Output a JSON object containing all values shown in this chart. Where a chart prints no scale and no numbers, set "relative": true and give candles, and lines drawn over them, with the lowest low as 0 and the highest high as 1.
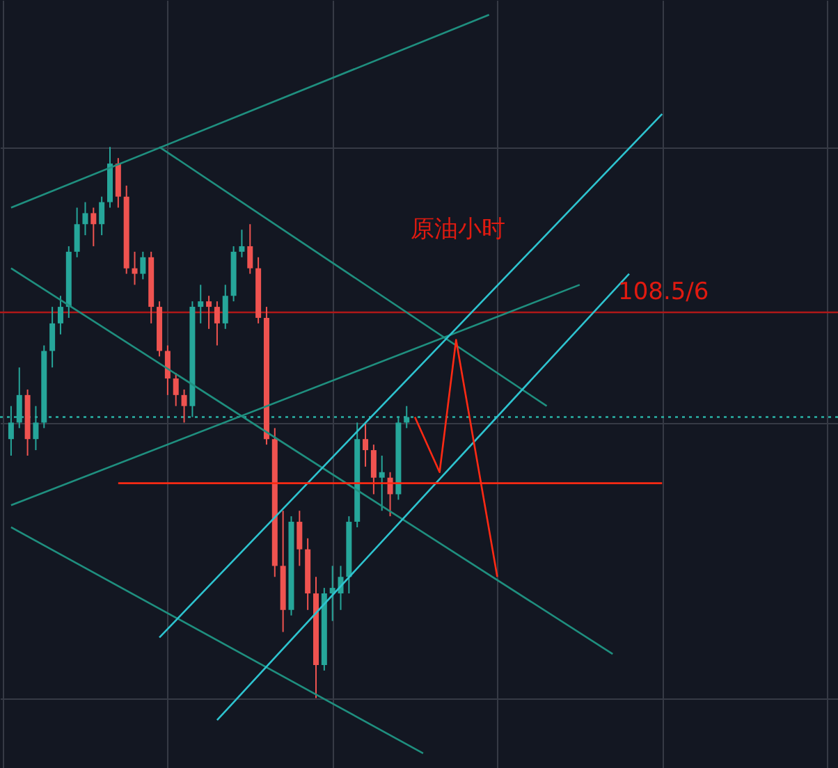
{
  "chart_data": {
    "type": "candlestick",
    "relative": true,
    "grid": true,
    "tick_labels": false,
    "annotations": [
      "原油小时",
      "108.5/6"
    ],
    "categories": [
      null,
      null,
      null,
      null,
      null,
      null,
      null,
      null,
      null,
      null,
      null,
      null,
      null,
      null,
      null,
      null,
      null,
      null,
      null,
      null,
      null,
      null,
      null,
      null,
      null,
      null,
      null,
      null,
      null,
      null,
      null,
      null,
      null,
      null,
      null,
      null,
      null,
      null,
      null,
      null,
      null,
      null,
      null,
      null,
      null,
      null,
      null,
      null,
      null,
      null,
      null,
      null,
      null,
      null,
      null,
      null,
      null,
      null,
      null,
      null,
      null,
      null,
      null,
      null,
      null,
      null,
      null,
      null,
      null,
      null,
      null,
      null,
      null,
      null,
      null,
      null,
      null,
      null,
      null,
      null,
      null,
      null,
      null,
      null,
      null,
      null,
      null,
      null,
      null,
      null,
      null,
      null,
      null,
      null,
      null,
      null,
      null,
      null,
      null,
      null
    ],
    "ohlc": [
      [
        0.47,
        0.53,
        0.44,
        0.5
      ],
      [
        0.5,
        0.6,
        0.49,
        0.55
      ],
      [
        0.55,
        0.56,
        0.44,
        0.47
      ],
      [
        0.47,
        0.53,
        0.45,
        0.5
      ],
      [
        0.5,
        0.64,
        0.49,
        0.63
      ],
      [
        0.63,
        0.71,
        0.6,
        0.68
      ],
      [
        0.68,
        0.73,
        0.66,
        0.71
      ],
      [
        0.71,
        0.82,
        0.69,
        0.81
      ],
      [
        0.81,
        0.89,
        0.8,
        0.86
      ],
      [
        0.86,
        0.9,
        0.84,
        0.88
      ],
      [
        0.88,
        0.89,
        0.82,
        0.86
      ],
      [
        0.86,
        0.91,
        0.84,
        0.9
      ],
      [
        0.9,
        1.0,
        0.89,
        0.97
      ],
      [
        0.97,
        0.98,
        0.89,
        0.91
      ],
      [
        0.91,
        0.93,
        0.77,
        0.78
      ],
      [
        0.78,
        0.81,
        0.75,
        0.77
      ],
      [
        0.77,
        0.81,
        0.76,
        0.8
      ],
      [
        0.8,
        0.81,
        0.68,
        0.71
      ],
      [
        0.71,
        0.72,
        0.62,
        0.63
      ],
      [
        0.63,
        0.64,
        0.55,
        0.58
      ],
      [
        0.58,
        0.59,
        0.53,
        0.55
      ],
      [
        0.55,
        0.56,
        0.5,
        0.53
      ],
      [
        0.53,
        0.72,
        0.51,
        0.71
      ],
      [
        0.71,
        0.75,
        0.68,
        0.72
      ],
      [
        0.72,
        0.73,
        0.67,
        0.71
      ],
      [
        0.71,
        0.72,
        0.64,
        0.68
      ],
      [
        0.68,
        0.75,
        0.67,
        0.73
      ],
      [
        0.73,
        0.82,
        0.72,
        0.81
      ],
      [
        0.81,
        0.85,
        0.8,
        0.82
      ],
      [
        0.82,
        0.86,
        0.77,
        0.78
      ],
      [
        0.78,
        0.8,
        0.68,
        0.69
      ],
      [
        0.69,
        0.71,
        0.46,
        0.47
      ],
      [
        0.47,
        0.49,
        0.22,
        0.24
      ],
      [
        0.24,
        0.34,
        0.12,
        0.16
      ],
      [
        0.16,
        0.33,
        0.15,
        0.32
      ],
      [
        0.32,
        0.34,
        0.24,
        0.27
      ],
      [
        0.27,
        0.29,
        0.16,
        0.19
      ],
      [
        0.19,
        0.22,
        0.0,
        0.06
      ],
      [
        0.06,
        0.2,
        0.05,
        0.19
      ],
      [
        0.19,
        0.24,
        0.14,
        0.2
      ],
      [
        0.19,
        0.24,
        0.16,
        0.22
      ],
      [
        0.22,
        0.33,
        0.19,
        0.32
      ],
      [
        0.32,
        0.5,
        0.31,
        0.47
      ],
      [
        0.47,
        0.5,
        0.42,
        0.45
      ],
      [
        0.45,
        0.46,
        0.37,
        0.4
      ],
      [
        0.4,
        0.44,
        0.34,
        0.41
      ],
      [
        0.4,
        0.41,
        0.33,
        0.37
      ],
      [
        0.37,
        0.51,
        0.36,
        0.5
      ],
      [
        0.5,
        0.53,
        0.49,
        0.51
      ],
      null,
      null,
      null,
      null,
      null,
      null,
      null,
      null,
      null,
      null,
      null,
      null,
      null,
      null,
      null,
      null,
      null,
      null,
      null,
      null,
      null,
      null,
      null,
      null,
      null,
      null,
      null,
      null,
      null,
      null,
      null,
      null,
      null,
      null,
      null,
      null,
      null,
      null,
      null,
      null,
      null,
      null,
      null,
      null,
      null,
      null,
      null,
      null,
      null,
      null,
      null
    ],
    "series": [
      {
        "type": "line",
        "color": "#1f8f7f",
        "values": [
          0.89,
          null,
          null,
          null,
          null,
          null,
          null,
          null,
          null,
          null,
          null,
          null,
          null,
          null,
          null,
          null,
          null,
          null,
          null,
          null,
          null,
          null,
          null,
          null,
          null,
          null,
          null,
          null,
          null,
          null,
          null,
          null,
          null,
          null,
          null,
          null,
          null,
          null,
          null,
          null,
          null,
          null,
          null,
          null,
          null,
          null,
          null,
          null,
          null,
          null,
          null,
          null,
          null,
          null,
          null,
          null,
          null,
          null,
          1.24,
          null,
          null,
          null,
          null,
          null,
          null,
          null,
          null,
          null,
          null,
          null,
          null,
          null,
          null,
          null,
          null,
          null,
          null,
          null,
          null,
          null,
          null,
          null,
          null,
          null,
          null,
          null,
          null,
          null,
          null,
          null,
          null,
          null,
          null,
          null,
          null,
          null,
          null,
          null,
          null,
          null
        ]
      },
      {
        "type": "line",
        "color": "#1f8f7f",
        "values": [
          null,
          null,
          null,
          null,
          null,
          null,
          null,
          null,
          null,
          null,
          null,
          null,
          null,
          null,
          null,
          null,
          null,
          null,
          1.0,
          null,
          null,
          null,
          null,
          null,
          null,
          null,
          null,
          null,
          null,
          null,
          null,
          null,
          null,
          null,
          null,
          null,
          null,
          null,
          null,
          null,
          null,
          null,
          null,
          null,
          null,
          null,
          null,
          null,
          null,
          null,
          null,
          null,
          null,
          null,
          null,
          null,
          null,
          null,
          null,
          null,
          null,
          null,
          null,
          null,
          null,
          0.53,
          null,
          null,
          null,
          null,
          null,
          null,
          null,
          null,
          null,
          null,
          null,
          null,
          null,
          null,
          null,
          null,
          null,
          null,
          null,
          null,
          null,
          null,
          null,
          null,
          null,
          null,
          null,
          null,
          null,
          null,
          null,
          null,
          null,
          null
        ]
      },
      {
        "type": "line",
        "color": "#1f8f7f",
        "values": [
          0.78,
          null,
          null,
          null,
          null,
          null,
          null,
          null,
          null,
          null,
          null,
          null,
          null,
          null,
          null,
          null,
          null,
          null,
          null,
          null,
          null,
          null,
          null,
          null,
          null,
          null,
          null,
          null,
          null,
          null,
          null,
          null,
          null,
          null,
          null,
          null,
          null,
          null,
          null,
          null,
          null,
          null,
          null,
          null,
          null,
          null,
          null,
          null,
          null,
          null,
          null,
          null,
          null,
          null,
          null,
          null,
          null,
          null,
          null,
          null,
          null,
          null,
          null,
          null,
          null,
          null,
          null,
          null,
          null,
          null,
          null,
          null,
          null,
          0.08,
          null,
          null,
          null,
          null,
          null,
          null,
          null,
          null,
          null,
          null,
          null,
          null,
          null,
          null,
          null,
          null,
          null,
          null,
          null,
          null,
          null,
          null,
          null,
          null,
          null,
          null
        ]
      },
      {
        "type": "line",
        "color": "#1f8f7f",
        "values": [
          0.35,
          null,
          null,
          null,
          null,
          null,
          null,
          null,
          null,
          null,
          null,
          null,
          null,
          null,
          null,
          null,
          null,
          null,
          null,
          null,
          null,
          null,
          null,
          null,
          null,
          null,
          null,
          null,
          null,
          null,
          null,
          null,
          null,
          null,
          null,
          null,
          null,
          null,
          null,
          null,
          null,
          null,
          null,
          null,
          null,
          null,
          null,
          null,
          null,
          null,
          null,
          null,
          null,
          null,
          null,
          null,
          null,
          null,
          null,
          null,
          null,
          null,
          null,
          null,
          null,
          null,
          null,
          null,
          null,
          0.75,
          null,
          null,
          null,
          null,
          null,
          null,
          null,
          null,
          null,
          null,
          null,
          null,
          null,
          null,
          null,
          null,
          null,
          null,
          null,
          null,
          null,
          null,
          null,
          null,
          null,
          null,
          null,
          null,
          null,
          null
        ]
      },
      {
        "type": "line",
        "color": "#1f8f7f",
        "values": [
          0.31,
          null,
          null,
          null,
          null,
          null,
          null,
          null,
          null,
          null,
          null,
          null,
          null,
          null,
          null,
          null,
          null,
          null,
          null,
          null,
          null,
          null,
          null,
          null,
          null,
          null,
          null,
          null,
          null,
          null,
          null,
          null,
          null,
          null,
          null,
          null,
          null,
          null,
          null,
          null,
          null,
          null,
          null,
          null,
          null,
          null,
          null,
          null,
          null,
          null,
          -0.1,
          null,
          null,
          null,
          null,
          null,
          null,
          null,
          null,
          null,
          null,
          null,
          null,
          null,
          null,
          null,
          null,
          null,
          null,
          null,
          null,
          null,
          null,
          null,
          null,
          null,
          null,
          null,
          null,
          null,
          null,
          null,
          null,
          null,
          null,
          null,
          null,
          null,
          null,
          null,
          null,
          null,
          null,
          null,
          null,
          null,
          null,
          null,
          null,
          null
        ]
      },
      {
        "type": "line",
        "color": "#2ec4d0",
        "values": [
          null,
          null,
          null,
          null,
          null,
          null,
          null,
          null,
          null,
          null,
          null,
          null,
          null,
          null,
          null,
          null,
          null,
          null,
          0.11,
          null,
          null,
          null,
          null,
          null,
          null,
          null,
          null,
          null,
          null,
          null,
          null,
          null,
          null,
          null,
          null,
          null,
          null,
          null,
          null,
          null,
          null,
          null,
          null,
          null,
          null,
          null,
          null,
          null,
          null,
          null,
          null,
          null,
          null,
          null,
          null,
          null,
          null,
          null,
          null,
          null,
          null,
          null,
          null,
          null,
          null,
          null,
          null,
          null,
          null,
          null,
          null,
          null,
          null,
          null,
          null,
          null,
          null,
          null,
          null,
          1.06,
          null,
          null,
          null,
          null,
          null,
          null,
          null,
          null,
          null,
          null,
          null,
          null,
          null,
          null,
          null,
          null,
          null,
          null,
          null,
          null
        ]
      },
      {
        "type": "line",
        "color": "#2ec4d0",
        "values": [
          null,
          null,
          null,
          null,
          null,
          null,
          null,
          null,
          null,
          null,
          null,
          null,
          null,
          null,
          null,
          null,
          null,
          null,
          null,
          null,
          null,
          null,
          null,
          null,
          null,
          -0.04,
          null,
          null,
          null,
          null,
          null,
          null,
          null,
          null,
          null,
          null,
          null,
          null,
          null,
          null,
          null,
          null,
          null,
          null,
          null,
          null,
          null,
          null,
          null,
          null,
          null,
          null,
          null,
          null,
          null,
          null,
          null,
          null,
          null,
          null,
          null,
          null,
          null,
          null,
          null,
          null,
          null,
          null,
          null,
          null,
          null,
          null,
          null,
          null,
          null,
          0.77,
          null,
          null,
          null,
          null,
          null,
          null,
          null,
          null,
          null,
          null,
          null,
          null,
          null,
          null,
          null,
          null,
          null,
          null,
          null,
          null,
          null,
          null,
          null,
          null
        ]
      },
      {
        "type": "line",
        "color": "#ff2a14",
        "values": [
          null,
          null,
          null,
          null,
          null,
          null,
          null,
          null,
          null,
          null,
          null,
          null,
          null,
          0.39,
          null,
          null,
          null,
          null,
          null,
          null,
          null,
          null,
          null,
          null,
          null,
          null,
          null,
          null,
          null,
          null,
          null,
          null,
          null,
          null,
          null,
          null,
          null,
          null,
          null,
          null,
          null,
          null,
          null,
          null,
          null,
          null,
          null,
          null,
          null,
          null,
          null,
          null,
          null,
          null,
          null,
          null,
          null,
          null,
          null,
          null,
          null,
          null,
          null,
          null,
          null,
          null,
          null,
          null,
          null,
          null,
          null,
          null,
          null,
          null,
          null,
          null,
          null,
          null,
          null,
          0.39,
          null,
          null,
          null,
          null,
          null,
          null,
          null,
          null,
          null,
          null,
          null,
          null,
          null,
          null,
          null,
          null,
          null,
          null,
          null,
          null
        ]
      },
      {
        "type": "line",
        "color": "#ff2a14",
        "values": [
          null,
          null,
          null,
          null,
          null,
          null,
          null,
          null,
          null,
          null,
          null,
          null,
          null,
          null,
          null,
          null,
          null,
          null,
          null,
          null,
          null,
          null,
          null,
          null,
          null,
          null,
          null,
          null,
          null,
          null,
          null,
          null,
          null,
          null,
          null,
          null,
          null,
          null,
          null,
          null,
          null,
          null,
          null,
          null,
          null,
          null,
          null,
          null,
          null,
          0.51,
          null,
          null,
          0.41,
          null,
          0.65,
          null,
          null,
          null,
          null,
          0.22,
          null,
          null,
          null,
          null,
          null,
          null,
          null,
          null,
          null,
          null,
          null,
          null,
          null,
          null,
          null,
          null,
          null,
          null,
          null,
          null,
          null,
          null,
          null,
          null,
          null,
          null,
          null,
          null,
          null,
          null,
          null,
          null,
          null,
          null,
          null,
          null,
          null,
          null,
          null,
          null
        ]
      }
    ],
    "ref_lines": [
      {
        "axis": "y",
        "value": 0.7,
        "color": "#b01818"
      },
      {
        "axis": "y",
        "value": 0.51,
        "color": "#2ab3a6",
        "line_style": "dotted"
      }
    ]
  }
}
